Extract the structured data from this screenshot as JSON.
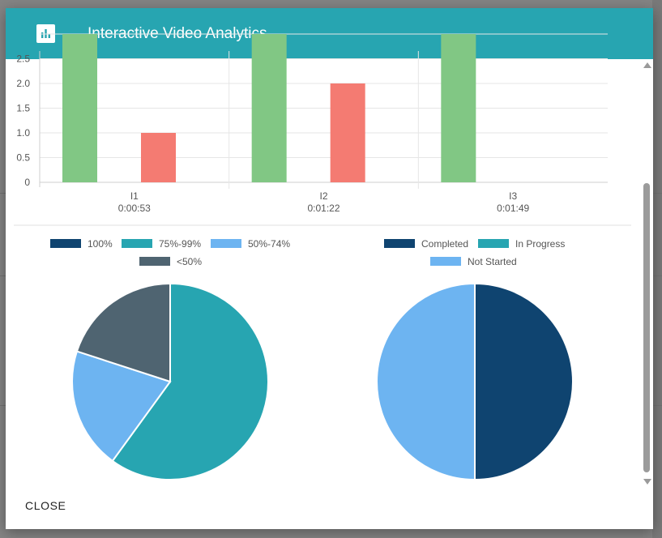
{
  "dialog": {
    "title": "Interactive Video Analytics",
    "close_label": "CLOSE"
  },
  "colors": {
    "header": "#27a5b1",
    "bar_green": "#81c784",
    "bar_red": "#f47b72",
    "pct_100": "#0f4470",
    "pct_75_99": "#27a5b1",
    "pct_50_74": "#6db4f1",
    "pct_lt50": "#4f6471",
    "completed": "#0f4470",
    "in_progress": "#27a5b1",
    "not_started": "#6db4f1"
  },
  "chart_data": [
    {
      "type": "bar",
      "categories": [
        [
          "I1",
          "0:00:53"
        ],
        [
          "I2",
          "0:01:22"
        ],
        [
          "I3",
          "0:01:49"
        ]
      ],
      "y_ticks": [
        "0",
        "0.5",
        "1.0",
        "1.5",
        "2.0",
        "2.5"
      ],
      "ylim": [
        0,
        3
      ],
      "series": [
        {
          "values": [
            3,
            3,
            3
          ],
          "color": "#81c784"
        },
        {
          "values": [
            1,
            2,
            0
          ],
          "color": "#f47b72"
        }
      ],
      "grid": true
    },
    {
      "type": "pie",
      "legend": [
        "100%",
        "75%-99%",
        "50%-74%",
        "<50%"
      ],
      "legend_placement": "top",
      "values": [
        0,
        3,
        1,
        1
      ],
      "colors": [
        "#0f4470",
        "#27a5b1",
        "#6db4f1",
        "#4f6471"
      ]
    },
    {
      "type": "pie",
      "legend": [
        "Completed",
        "In Progress",
        "Not Started"
      ],
      "legend_placement": "top",
      "values": [
        1,
        0,
        1
      ],
      "colors": [
        "#0f4470",
        "#27a5b1",
        "#6db4f1"
      ]
    }
  ]
}
